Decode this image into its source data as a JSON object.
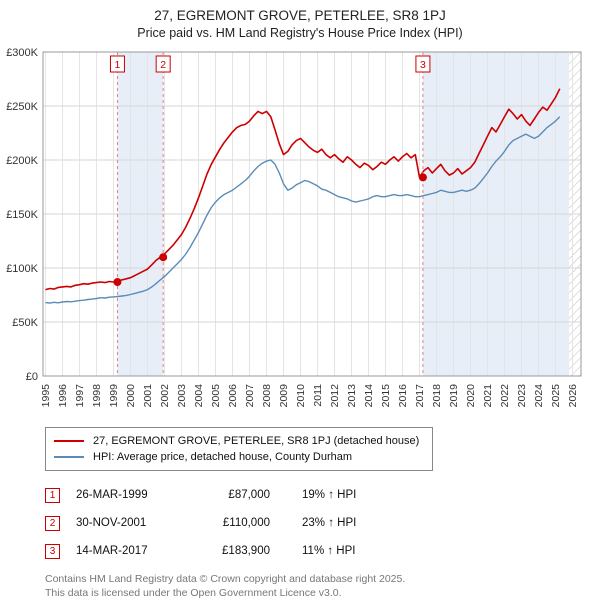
{
  "chart_data": {
    "type": "line",
    "title": "27, EGREMONT GROVE, PETERLEE, SR8 1PJ",
    "subtitle": "Price paid vs. HM Land Registry's House Price Index (HPI)",
    "x_range": [
      1994.85,
      2026.5
    ],
    "y_range_k": [
      0,
      300
    ],
    "x_start": 1995,
    "x_step": 0.25,
    "grid": true,
    "band_color": "#e8eef8",
    "y_ticks": [
      {
        "v": 0,
        "label": "£0"
      },
      {
        "v": 50,
        "label": "£50K"
      },
      {
        "v": 100,
        "label": "£100K"
      },
      {
        "v": 150,
        "label": "£150K"
      },
      {
        "v": 200,
        "label": "£200K"
      },
      {
        "v": 250,
        "label": "£250K"
      },
      {
        "v": 300,
        "label": "£300K"
      }
    ],
    "x_ticks": [
      1995,
      1996,
      1997,
      1998,
      1999,
      2000,
      2001,
      2002,
      2003,
      2004,
      2005,
      2006,
      2007,
      2008,
      2009,
      2010,
      2011,
      2012,
      2013,
      2014,
      2015,
      2016,
      2017,
      2018,
      2019,
      2020,
      2021,
      2022,
      2023,
      2024,
      2025,
      2026
    ],
    "series": [
      {
        "name": "27, EGREMONT GROVE, PETERLEE, SR8 1PJ (detached house)",
        "color": "#cc0000",
        "values_gbp_thousands": [
          80,
          81,
          80.5,
          82,
          82.5,
          83,
          82.5,
          84,
          84.5,
          85.5,
          85,
          86,
          86.5,
          87,
          86.5,
          87.5,
          87,
          88,
          89,
          90,
          91,
          93,
          95,
          97,
          99,
          103,
          107,
          110,
          113,
          117,
          121,
          126,
          131,
          138,
          146,
          155,
          165,
          176,
          187,
          196,
          203,
          210,
          216,
          221,
          226,
          230,
          232,
          233,
          236,
          241,
          245,
          243,
          245,
          240,
          228,
          215,
          205,
          208,
          214,
          218,
          220,
          216,
          212,
          209,
          207,
          210,
          205,
          202,
          205,
          201,
          198,
          203,
          200,
          196,
          193,
          197,
          195,
          191,
          194,
          198,
          196,
          200,
          203,
          199,
          203,
          206,
          202,
          205,
          184,
          190,
          193,
          188,
          192,
          196,
          190,
          186,
          188,
          192,
          187,
          190,
          193,
          198,
          206,
          214,
          222,
          230,
          226,
          233,
          240,
          247,
          243,
          238,
          242,
          236,
          232,
          238,
          244,
          249,
          246,
          252,
          258,
          266
        ]
      },
      {
        "name": "HPI: Average price, detached house, County Durham",
        "color": "#5b8cb8",
        "values_gbp_thousands": [
          68,
          67.5,
          68.2,
          67.8,
          68.5,
          69,
          68.7,
          69.3,
          69.8,
          70.2,
          70.8,
          71.2,
          71.8,
          72.5,
          72.2,
          73,
          73.2,
          73.6,
          74.1,
          74.6,
          75.5,
          76.5,
          77.5,
          78.5,
          80,
          82.5,
          85.5,
          89,
          92,
          96,
          100,
          104,
          108,
          113,
          119,
          126,
          133,
          141,
          149,
          156,
          161,
          165,
          168,
          170,
          172,
          175,
          178,
          181,
          185,
          190,
          194,
          197,
          199,
          200,
          196,
          188,
          178,
          172,
          174,
          177,
          179,
          181,
          180,
          178,
          176,
          173,
          172,
          170,
          168,
          166,
          165,
          164,
          162,
          161,
          162,
          163,
          164,
          166,
          167,
          166,
          166,
          167,
          168,
          167,
          167,
          168,
          167,
          166,
          166,
          167,
          168,
          169,
          170,
          172,
          171,
          170,
          170,
          171,
          172,
          171,
          172,
          174,
          178,
          183,
          188,
          194,
          199,
          203,
          208,
          214,
          218,
          220,
          222,
          224,
          222,
          220,
          222,
          226,
          230,
          233,
          236,
          240
        ]
      }
    ],
    "sale_markers": [
      {
        "n": "1",
        "x": 1999.23,
        "price_k": 87
      },
      {
        "n": "2",
        "x": 2001.92,
        "price_k": 110
      },
      {
        "n": "3",
        "x": 2017.2,
        "price_k": 183.9
      }
    ],
    "shaded_bands": [
      [
        1999.23,
        2001.92
      ],
      [
        2017.2,
        2025.8
      ]
    ],
    "hatched_band": [
      2025.8,
      2026.5
    ]
  },
  "legend": {
    "items": [
      {
        "label": "27, EGREMONT GROVE, PETERLEE, SR8 1PJ (detached house)"
      },
      {
        "label": "HPI: Average price, detached house, County Durham"
      }
    ]
  },
  "transactions": [
    {
      "n": "1",
      "date": "26-MAR-1999",
      "price": "£87,000",
      "hpi": "19% ↑ HPI"
    },
    {
      "n": "2",
      "date": "30-NOV-2001",
      "price": "£110,000",
      "hpi": "23% ↑ HPI"
    },
    {
      "n": "3",
      "date": "14-MAR-2017",
      "price": "£183,900",
      "hpi": "11% ↑ HPI"
    }
  ],
  "footer": {
    "line1": "Contains HM Land Registry data © Crown copyright and database right 2025.",
    "line2": "This data is licensed under the Open Government Licence v3.0."
  }
}
